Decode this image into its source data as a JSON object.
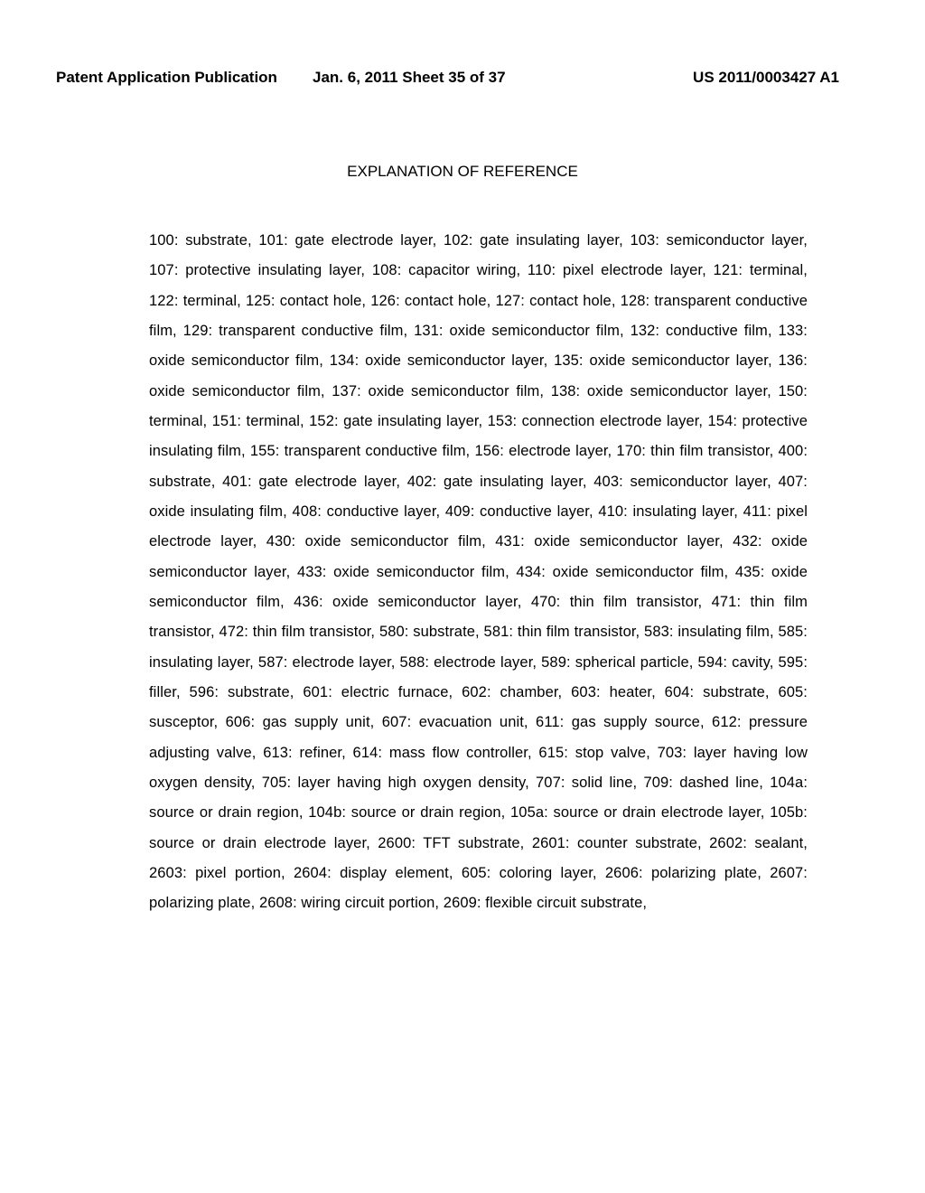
{
  "header": {
    "left": "Patent Application Publication",
    "center": "Jan. 6, 2011   Sheet 35 of 37",
    "right": "US 2011/0003427 A1"
  },
  "section_title": "EXPLANATION OF REFERENCE",
  "body": "100: substrate, 101: gate electrode layer, 102: gate insulating layer, 103: semiconductor layer, 107: protective insulating layer, 108: capacitor wiring, 110: pixel electrode layer, 121: terminal, 122: terminal, 125: contact hole, 126: contact hole, 127: contact hole, 128: transparent conductive film, 129: transparent conductive film, 131: oxide semiconductor film, 132: conductive film, 133: oxide semiconductor film, 134: oxide semiconductor layer, 135: oxide semiconductor layer, 136: oxide semiconductor film, 137: oxide semiconductor film, 138: oxide semiconductor layer, 150: terminal, 151: terminal, 152: gate insulating layer, 153: connection electrode layer, 154: protective insulating film, 155: transparent conductive film, 156: electrode layer, 170: thin film transistor, 400: substrate, 401: gate electrode layer, 402: gate insulating layer, 403: semiconductor layer, 407: oxide insulating film, 408: conductive layer, 409: conductive layer, 410: insulating layer, 411: pixel electrode layer, 430: oxide semiconductor film, 431: oxide semiconductor layer, 432: oxide semiconductor layer, 433: oxide semiconductor film, 434: oxide semiconductor film, 435: oxide semiconductor film, 436: oxide semiconductor layer, 470: thin film transistor, 471: thin film transistor, 472: thin film transistor, 580: substrate, 581: thin film transistor, 583: insulating film, 585: insulating layer, 587: electrode layer, 588: electrode layer, 589: spherical particle, 594: cavity, 595: filler, 596: substrate, 601: electric furnace, 602: chamber, 603: heater, 604: substrate, 605: susceptor, 606: gas supply unit, 607: evacuation unit, 611: gas supply source, 612: pressure adjusting valve, 613: refiner, 614: mass flow controller, 615: stop valve, 703: layer having low oxygen density, 705: layer having high oxygen density, 707: solid line, 709: dashed line, 104a: source or drain region, 104b: source or drain region, 105a: source or drain electrode layer, 105b: source or drain electrode layer, 2600: TFT substrate, 2601: counter substrate, 2602: sealant, 2603: pixel portion, 2604: display element, 605: coloring layer, 2606: polarizing plate, 2607: polarizing plate, 2608: wiring circuit portion, 2609: flexible circuit substrate,"
}
